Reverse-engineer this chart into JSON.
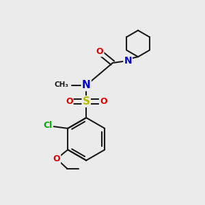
{
  "bg_color": "#ebebeb",
  "bond_color": "#1a1a1a",
  "bond_width": 1.5,
  "atom_colors": {
    "N": "#0000cc",
    "O": "#dd0000",
    "S": "#bbbb00",
    "Cl": "#00aa00",
    "C": "#1a1a1a"
  },
  "font_size": 9,
  "fig_size": [
    3.0,
    3.0
  ],
  "dpi": 100,
  "xlim": [
    0,
    10
  ],
  "ylim": [
    0,
    10
  ]
}
